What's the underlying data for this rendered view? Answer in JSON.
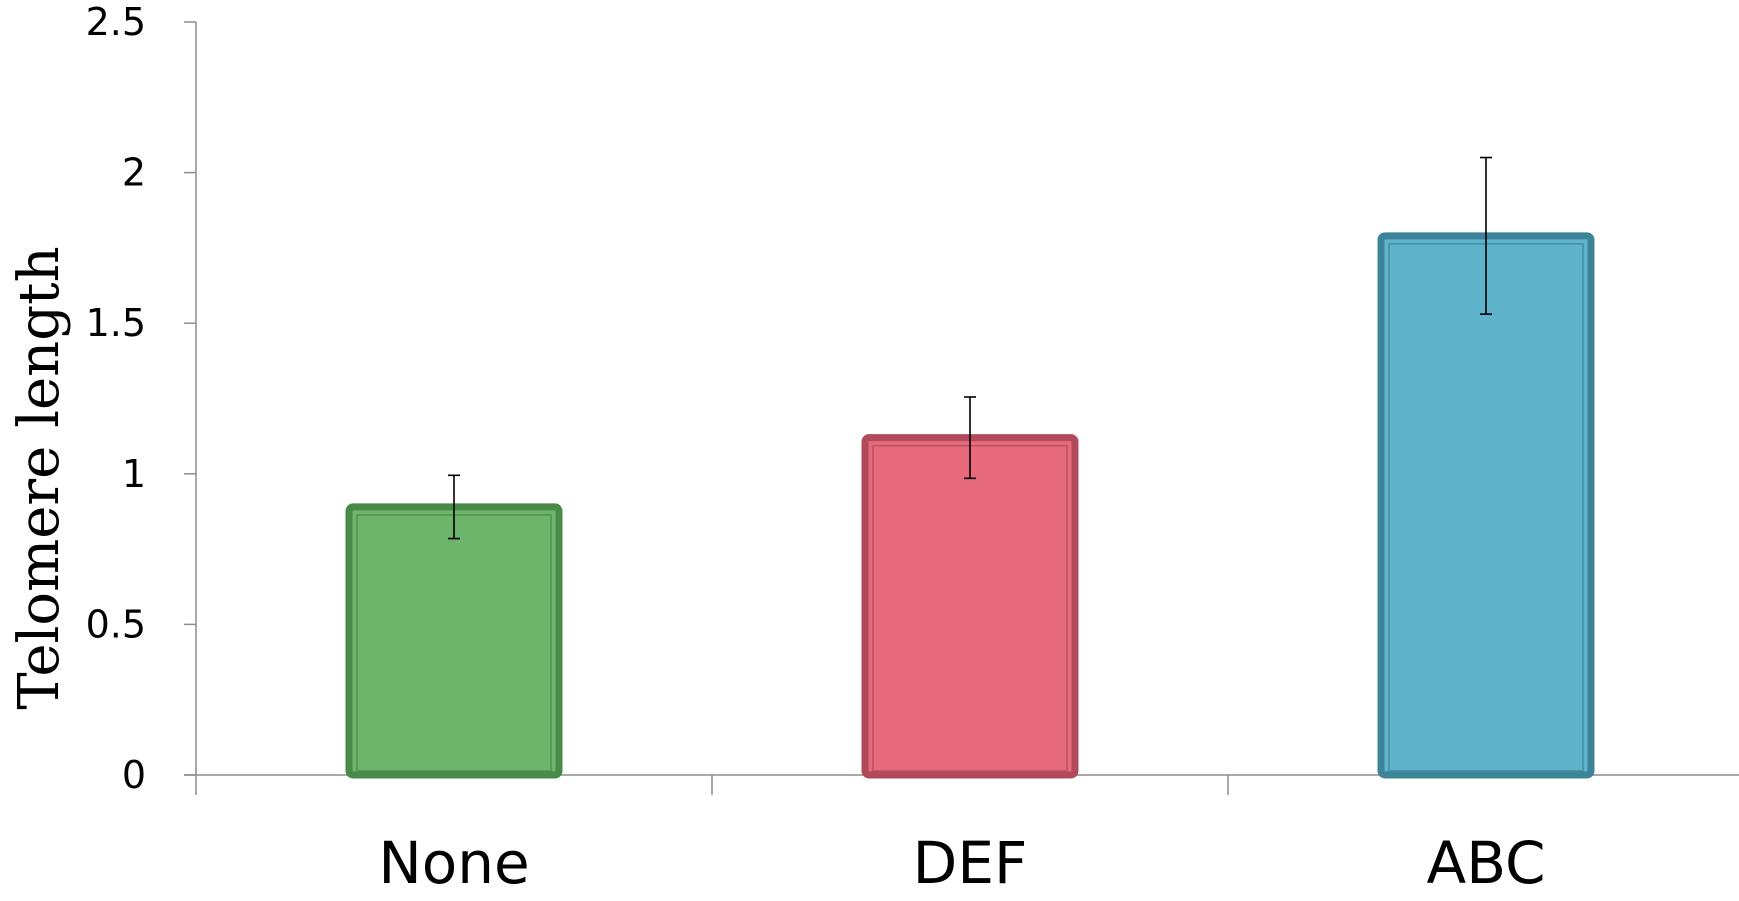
{
  "chart_data": {
    "type": "bar",
    "title": "",
    "xlabel": "",
    "ylabel": "Telomere length",
    "categories": [
      "None",
      "DEF",
      "ABC"
    ],
    "values": [
      0.89,
      1.12,
      1.79
    ],
    "error": [
      0.105,
      0.135,
      0.26
    ],
    "ylim": [
      0,
      2.5
    ],
    "yticks": [
      "0",
      "0.5",
      "1",
      "1.5",
      "2",
      "2.5"
    ],
    "grid": false,
    "legend": "none",
    "colors": {
      "fill": [
        "#6db56b",
        "#e66a7b",
        "#5fb3cb"
      ],
      "stroke": [
        "#4a8a49",
        "#b04a5a",
        "#3d8499"
      ],
      "axis": "#8c8c8c",
      "error_bar": "#000000"
    }
  }
}
